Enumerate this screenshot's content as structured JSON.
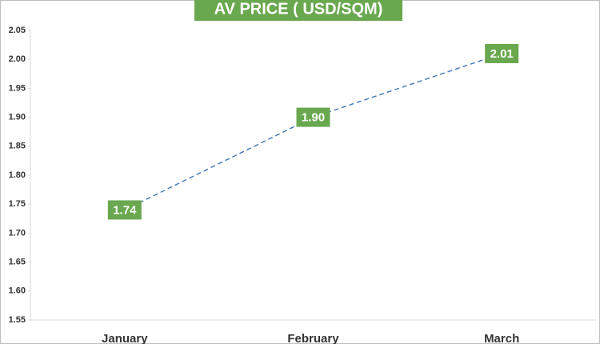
{
  "chart_data": {
    "type": "line",
    "title": "AV PRICE ( USD/SQM)",
    "categories": [
      "January",
      "February",
      "March"
    ],
    "values": [
      1.74,
      1.9,
      2.01
    ],
    "value_labels": [
      "1.74",
      "1.90",
      "2.01"
    ],
    "color": "#4a7ebb",
    "ylim": [
      1.55,
      2.05
    ],
    "yticks": [
      1.55,
      {
        "value": 1.6,
        "label": "1.60"
      },
      1.65,
      {
        "value": 1.7,
        "label": "1.70"
      },
      1.75,
      {
        "value": 1.8,
        "label": "1.80"
      },
      1.85,
      {
        "value": 1.9,
        "label": "1.90"
      },
      1.95,
      {
        "value": 2.0,
        "label": "2.00"
      },
      2.05
    ]
  }
}
